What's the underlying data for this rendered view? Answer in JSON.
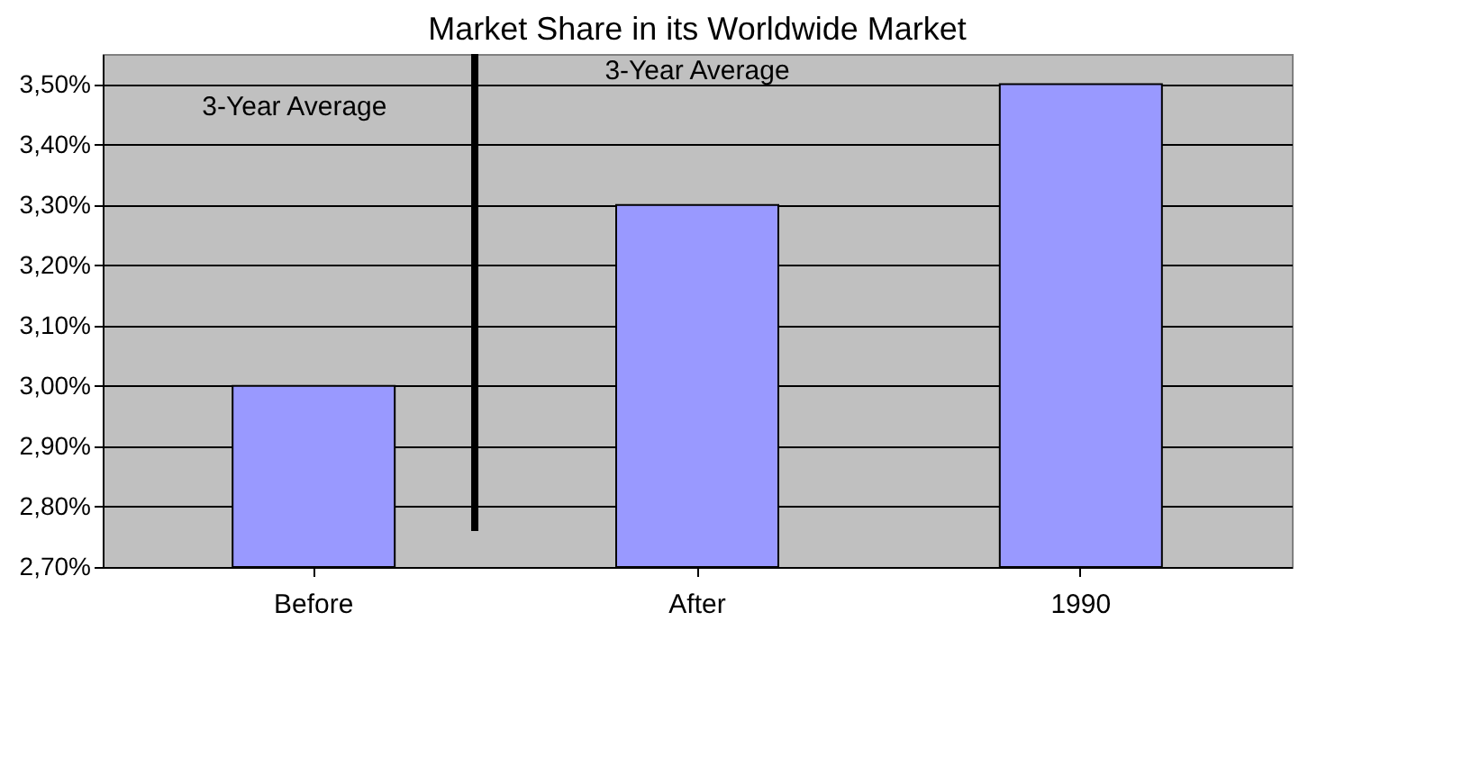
{
  "chart_data": {
    "type": "bar",
    "title": "Market Share in its Worldwide Market",
    "categories": [
      "Before",
      "After",
      "1990"
    ],
    "values": [
      3.0,
      3.3,
      3.5
    ],
    "color": "#9999ff",
    "ylim": [
      2.7,
      3.55
    ],
    "yticks": [
      {
        "value": 2.7,
        "label": "2,70%"
      },
      {
        "value": 2.8,
        "label": "2,80%"
      },
      {
        "value": 2.9,
        "label": "2,90%"
      },
      {
        "value": 3.0,
        "label": "3,00%"
      },
      {
        "value": 3.1,
        "label": "3,10%"
      },
      {
        "value": 3.2,
        "label": "3,20%"
      },
      {
        "value": 3.3,
        "label": "3,30%"
      },
      {
        "value": 3.4,
        "label": "3,40%"
      },
      {
        "value": 3.5,
        "label": "3,50%"
      }
    ],
    "grid": "y",
    "annotations": [
      "3-Year Average",
      "3-Year Average"
    ]
  }
}
